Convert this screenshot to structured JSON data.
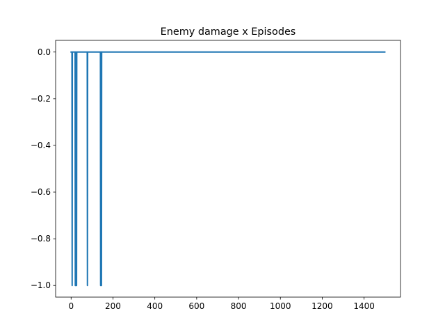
{
  "chart_data": {
    "type": "line",
    "title": "Enemy damage x Episodes",
    "xlabel": "",
    "ylabel": "",
    "xlim": [
      -74,
      1574
    ],
    "ylim": [
      -1.05,
      0.05
    ],
    "xticks": [
      0,
      200,
      400,
      600,
      800,
      1000,
      1200,
      1400
    ],
    "xtick_labels": [
      "0",
      "200",
      "400",
      "600",
      "800",
      "1000",
      "1200",
      "1400"
    ],
    "yticks": [
      0.0,
      -0.2,
      -0.4,
      -0.6,
      -0.8,
      -1.0
    ],
    "ytick_labels": [
      "0.0",
      "−0.2",
      "−0.4",
      "−0.6",
      "−0.8",
      "−1.0"
    ],
    "grid": false,
    "legend": "none",
    "series": [
      {
        "color": "#1f77b4",
        "x": [
          0,
          4,
          5,
          6,
          7,
          19,
          20,
          21,
          22,
          25,
          26,
          27,
          28,
          77,
          78,
          79,
          140,
          141,
          142,
          143,
          144,
          145,
          146,
          1499
        ],
        "y": [
          0,
          0,
          -1,
          0,
          0,
          0,
          -1,
          0,
          -1,
          0,
          -1,
          0,
          0,
          0,
          -1,
          0,
          0,
          -1,
          0,
          -1,
          0,
          -1,
          0,
          0
        ]
      }
    ]
  }
}
